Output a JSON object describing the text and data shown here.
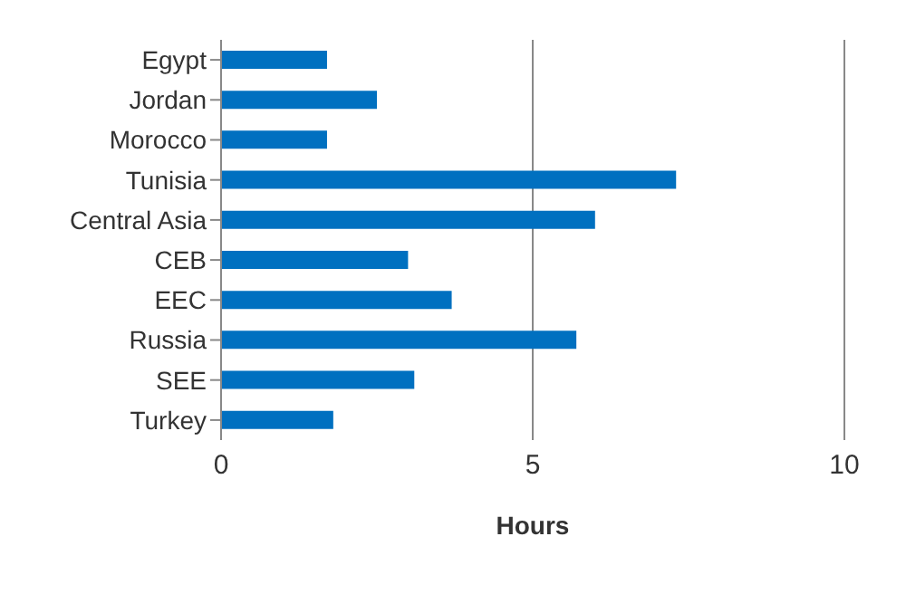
{
  "chart_data": {
    "type": "bar",
    "orientation": "horizontal",
    "xlabel": "Hours",
    "categories": [
      "Egypt",
      "Jordan",
      "Morocco",
      "Tunisia",
      "Central Asia",
      "CEB",
      "EEC",
      "Russia",
      "SEE",
      "Turkey"
    ],
    "values": [
      1.7,
      2.5,
      1.7,
      7.3,
      6.0,
      3.0,
      3.7,
      5.7,
      3.1,
      1.8
    ],
    "color": "#0070c0",
    "xlim": [
      0,
      10
    ],
    "xticks": [
      0,
      5,
      10
    ],
    "grid": "x",
    "legend": false
  }
}
